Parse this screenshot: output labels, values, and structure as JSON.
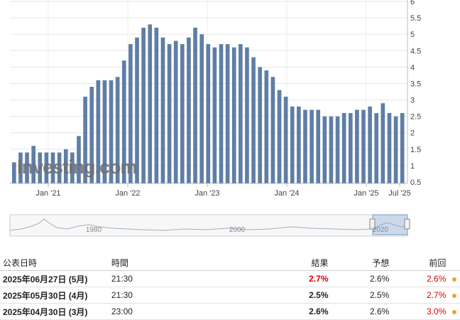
{
  "chart_data": {
    "type": "bar",
    "x_tick_labels": [
      "Jan '21",
      "Jan '22",
      "Jan '23",
      "Jan '24",
      "Jan '25",
      "Jul '25"
    ],
    "y_ticks": [
      "0.5",
      "1",
      "1.5",
      "2",
      "2.5",
      "3",
      "3.5",
      "4",
      "4.5",
      "5",
      "5.5",
      "6"
    ],
    "ylim": [
      0.5,
      6
    ],
    "y_axis_position": "right",
    "grid": true,
    "bar_color": "#5f7ea6",
    "values": [
      1.1,
      1.4,
      1.4,
      1.6,
      1.4,
      1.4,
      1.4,
      1.4,
      1.5,
      1.4,
      1.9,
      3.1,
      3.4,
      3.6,
      3.6,
      3.6,
      3.7,
      4.2,
      4.7,
      4.9,
      5.2,
      5.3,
      5.2,
      4.9,
      4.7,
      4.8,
      4.7,
      4.9,
      5.2,
      5.0,
      4.7,
      4.6,
      4.7,
      4.7,
      4.6,
      4.7,
      4.6,
      4.3,
      4.0,
      3.9,
      3.7,
      3.3,
      3.1,
      2.8,
      2.8,
      2.7,
      2.7,
      2.7,
      2.5,
      2.5,
      2.5,
      2.6,
      2.6,
      2.7,
      2.7,
      2.8,
      2.6,
      2.9,
      2.6,
      2.5,
      2.6
    ]
  },
  "watermark": "Investing.com",
  "navigator": {
    "labels": [
      "1980",
      "2000",
      "2020"
    ]
  },
  "table": {
    "headers": {
      "date": "公表日時",
      "time": "時間",
      "actual": "結果",
      "forecast": "予想",
      "previous": "前回"
    },
    "rows": [
      {
        "date": "2025年06月27日 (5月)",
        "time": "21:30",
        "actual": "2.7%",
        "actual_color": "#e00000",
        "forecast": "2.6%",
        "previous": "2.6%",
        "previous_color": "#e00000"
      },
      {
        "date": "2025年05月30日 (4月)",
        "time": "21:30",
        "actual": "2.5%",
        "actual_color": "#222222",
        "forecast": "2.5%",
        "previous": "2.7%",
        "previous_color": "#e00000"
      },
      {
        "date": "2025年04月30日 (3月)",
        "time": "23:00",
        "actual": "2.6%",
        "actual_color": "#222222",
        "forecast": "2.6%",
        "previous": "3.0%",
        "previous_color": "#e00000"
      }
    ]
  }
}
